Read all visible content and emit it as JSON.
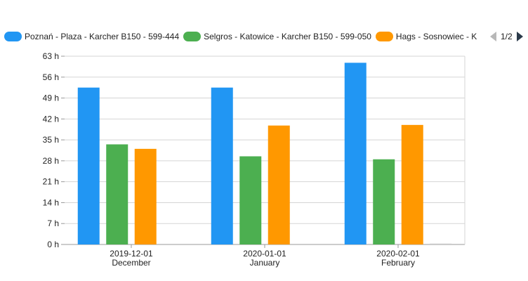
{
  "chart_data": {
    "type": "bar",
    "categories": [
      {
        "date": "2019-12-01",
        "month": "December"
      },
      {
        "date": "2020-01-01",
        "month": "January"
      },
      {
        "date": "2020-02-01",
        "month": "February"
      }
    ],
    "series": [
      {
        "name": "Poznań - Plaza - Karcher B150 - 599-444",
        "color": "#2196f3",
        "values": [
          52.5,
          52.5,
          60.8
        ]
      },
      {
        "name": "Selgros - Katowice - Karcher B150 - 599-050",
        "color": "#4caf50",
        "values": [
          33.5,
          29.5,
          28.5
        ]
      },
      {
        "name": "Hags - Sosnowiec - K",
        "color": "#ff9800",
        "values": [
          32.0,
          39.8,
          40.0
        ]
      },
      {
        "name": "",
        "color": "#cccccc",
        "values": [
          0,
          0,
          0.3
        ]
      }
    ],
    "y_axis": {
      "ticks": [
        "0 h",
        "7 h",
        "14 h",
        "21 h",
        "28 h",
        "35 h",
        "42 h",
        "49 h",
        "56 h",
        "63 h"
      ],
      "ylim": [
        0,
        63
      ],
      "unit": "h"
    },
    "grid": true
  },
  "legend": {
    "pager_text": "1/2",
    "prev_icon": "triangle-left-icon",
    "next_icon": "triangle-right-icon"
  }
}
